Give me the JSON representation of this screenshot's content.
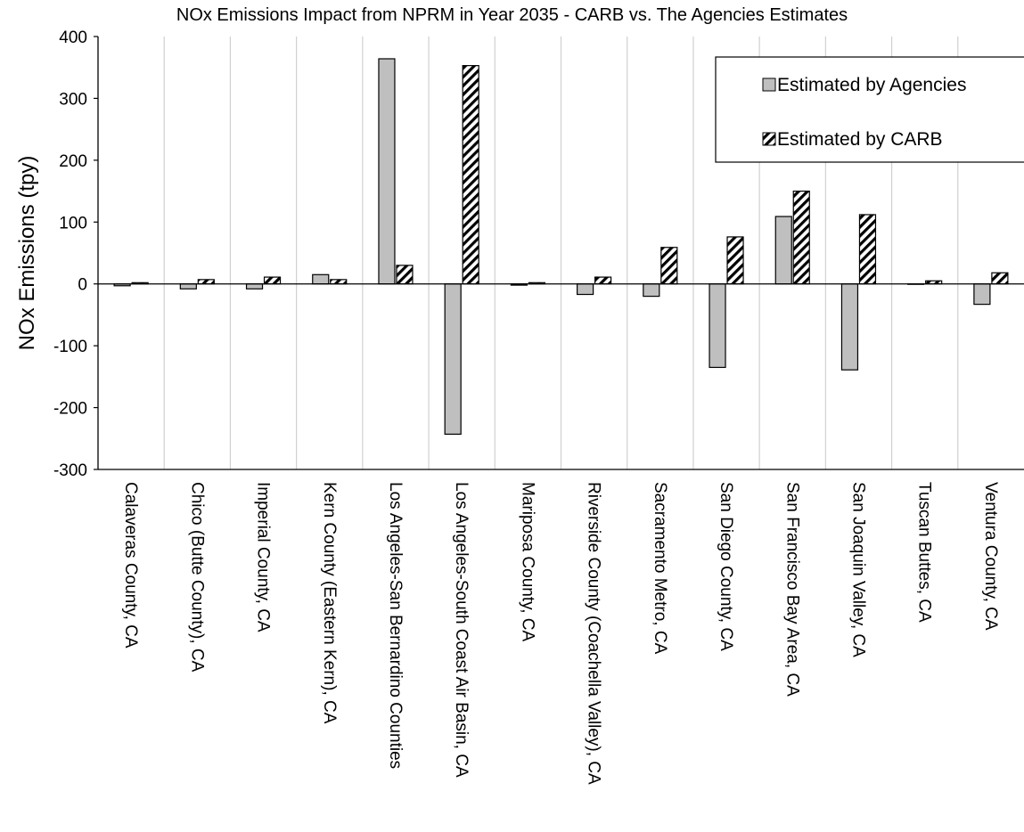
{
  "chart_data": {
    "type": "bar",
    "title": "NOx Emissions Impact from NPRM in Year 2035 - CARB vs. The Agencies Estimates",
    "xlabel": "",
    "ylabel": "NOx Emissions (tpy)",
    "ylim": [
      -300,
      400
    ],
    "yticks": [
      -300,
      -200,
      -100,
      0,
      100,
      200,
      300,
      400
    ],
    "grid": "vertical category separators",
    "legend_position": "top-right",
    "categories": [
      "Calaveras County, CA",
      "Chico (Butte County), CA",
      "Imperial County, CA",
      "Kern County (Eastern Kern), CA",
      "Los Angeles-San Bernardino Counties",
      "Los Angeles-South Coast Air Basin, CA",
      "Mariposa County, CA",
      "Riverside County (Coachella Valley), CA",
      "Sacramento Metro, CA",
      "San Diego County, CA",
      "San Francisco Bay Area, CA",
      "San Joaquin Valley, CA",
      "Tuscan Buttes, CA",
      "Ventura County, CA"
    ],
    "series": [
      {
        "name": "Estimated by Agencies",
        "fill": "#bfbfbf",
        "pattern": "solid",
        "values": [
          -3,
          -8,
          -8,
          15,
          364,
          -243,
          -2,
          -17,
          -20,
          -135,
          109,
          -139,
          0,
          -33
        ]
      },
      {
        "name": "Estimated by CARB",
        "fill": "#ffffff",
        "pattern": "diagonal-hatch",
        "values": [
          2,
          7,
          11,
          7,
          30,
          353,
          2,
          11,
          59,
          76,
          150,
          112,
          5,
          18
        ]
      }
    ]
  }
}
